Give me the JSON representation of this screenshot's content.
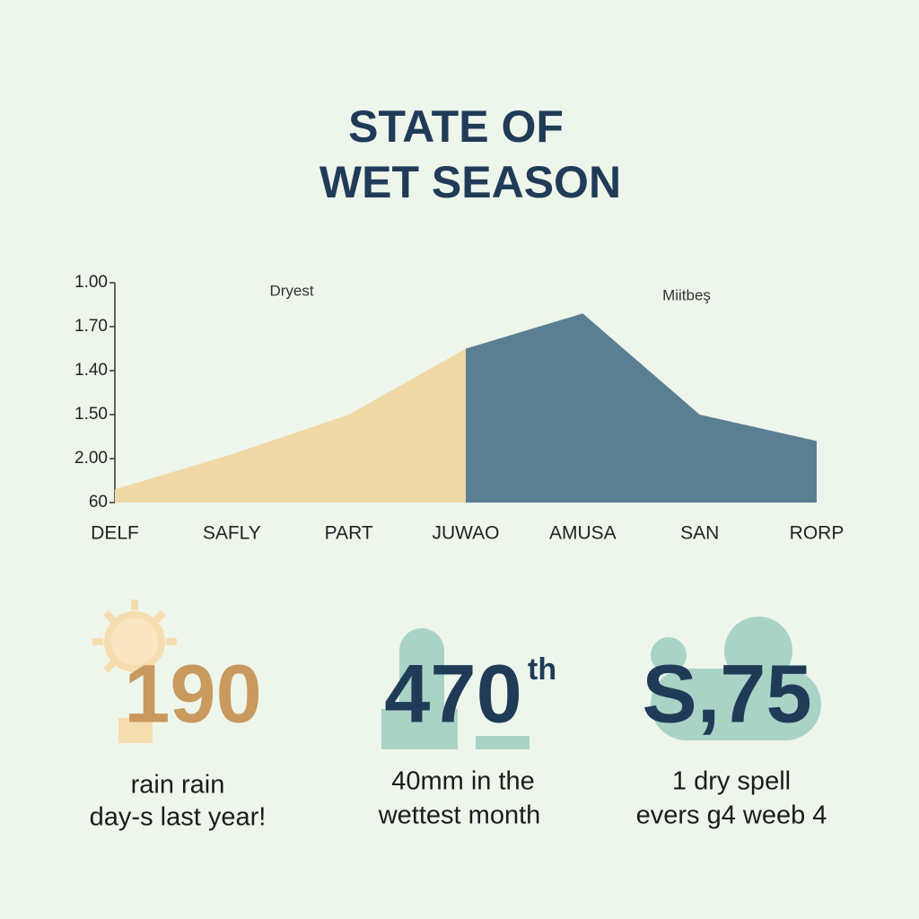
{
  "chart_data": {
    "type": "area",
    "title": [
      "STATE OF",
      "WET SEASON"
    ],
    "annotations": [
      "Dryest",
      "Miitbeş"
    ],
    "categories": [
      "DELF",
      "SAFLY",
      "PART",
      "JUWAO",
      "AMUSA",
      "SAN",
      "RORP"
    ],
    "series": [
      {
        "name": "Dryest",
        "color": "#f0d9a6",
        "values": [
          0.3,
          1.1,
          2.0,
          3.5,
          null,
          null,
          null
        ]
      },
      {
        "name": "Miitbeş",
        "color": "#5a7f93",
        "values": [
          null,
          null,
          null,
          3.5,
          4.3,
          2.0,
          1.4
        ]
      }
    ],
    "ylim": [
      0,
      5
    ],
    "yticks": [
      {
        "value": 0,
        "label": "60"
      },
      {
        "value": 1,
        "label": "2.00"
      },
      {
        "value": 2,
        "label": "1.50"
      },
      {
        "value": 3,
        "label": "1.40"
      },
      {
        "value": 4,
        "label": "1.70"
      },
      {
        "value": 5,
        "label": "1.00"
      }
    ]
  },
  "stats": [
    {
      "number": "190",
      "lines": [
        "rain rain",
        "day-s last year!"
      ],
      "color": "#c9995e"
    },
    {
      "number": "470",
      "sup": "th",
      "lines": [
        "40mm in the",
        "wettest month"
      ],
      "color": "#1f3b57"
    },
    {
      "number": "S,75",
      "lines": [
        "1 dry spell",
        "evers g4 weeb 4"
      ],
      "color": "#1f3b57"
    }
  ]
}
